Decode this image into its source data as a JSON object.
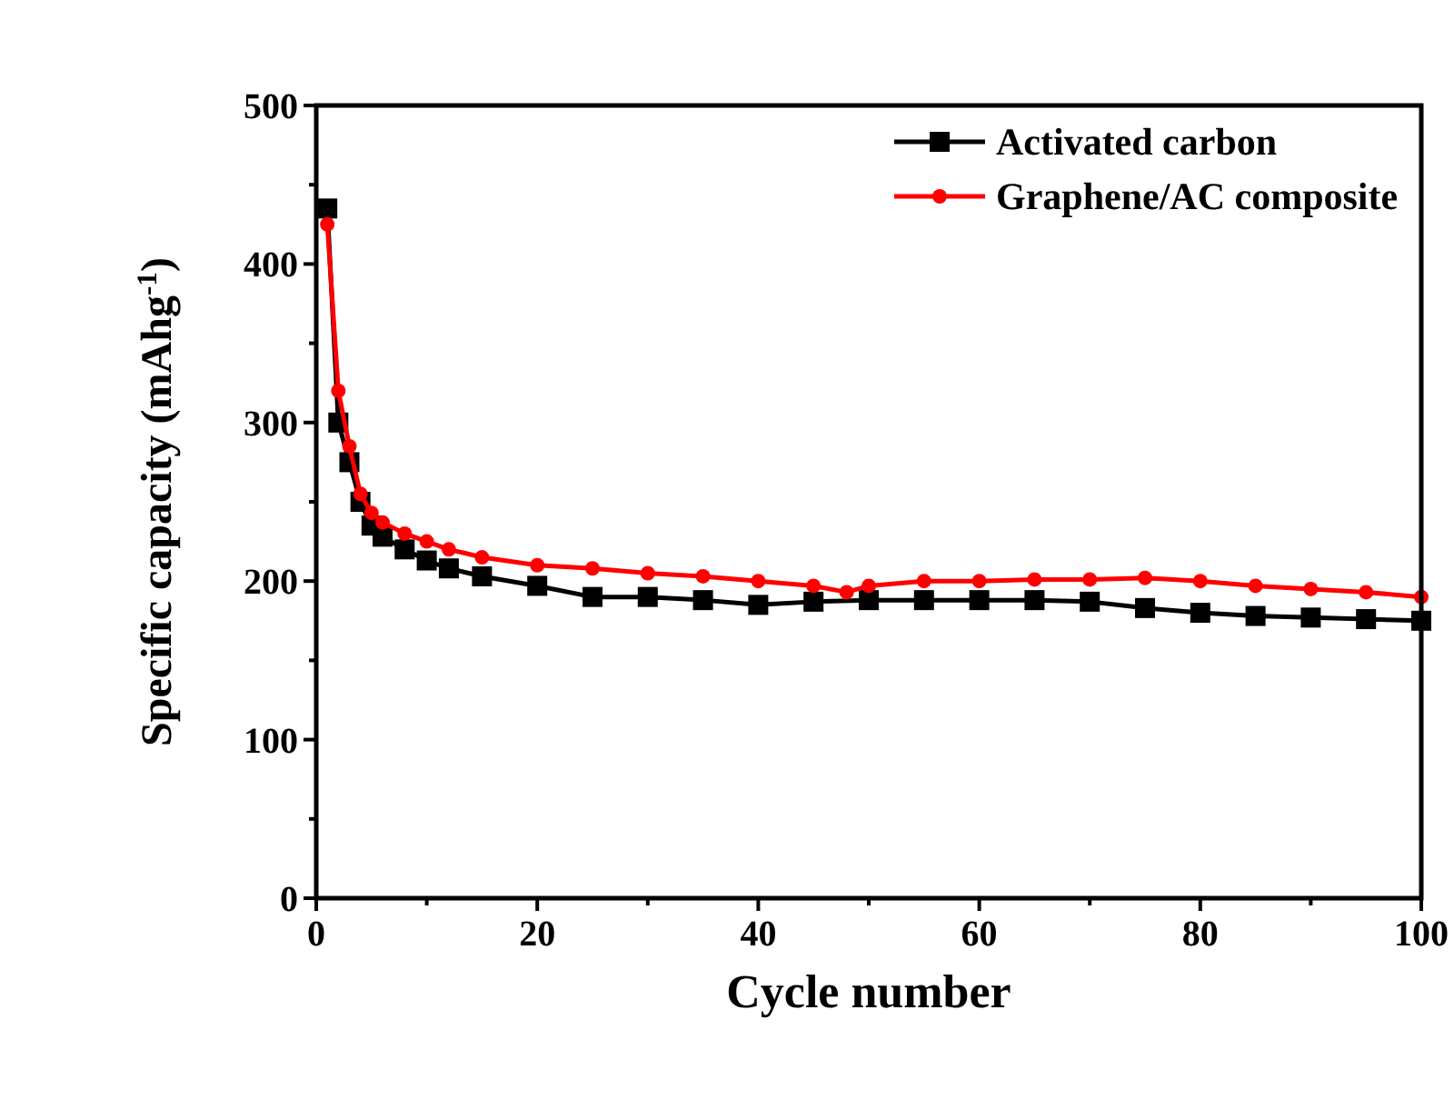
{
  "chart_data": {
    "type": "line",
    "xlabel": "Cycle number",
    "ylabel": "Specific capacity (mAhg$^{-1}$)",
    "xlim": [
      0,
      100
    ],
    "ylim": [
      0,
      500
    ],
    "xticks": [
      0,
      {
        "value": 10,
        "label": null
      },
      20,
      {
        "value": 30,
        "label": null
      },
      40,
      {
        "value": 50,
        "label": null
      },
      60,
      {
        "value": 70,
        "label": null
      },
      80,
      {
        "value": 90,
        "label": null
      },
      100
    ],
    "yticks": [
      0,
      {
        "value": 50,
        "label": null
      },
      100,
      {
        "value": 150,
        "label": null
      },
      200,
      {
        "value": 250,
        "label": null
      },
      300,
      {
        "value": 350,
        "label": null
      },
      400,
      {
        "value": 450,
        "label": null
      },
      500
    ],
    "legend": "top right",
    "grid": false,
    "line_style": "solid",
    "series": [
      {
        "name": "Activated carbon",
        "color": "#000000",
        "marker": "square",
        "x": [
          1,
          2,
          3,
          4,
          5,
          6,
          8,
          10,
          12,
          15,
          20,
          25,
          30,
          35,
          40,
          45,
          50,
          55,
          60,
          65,
          70,
          75,
          80,
          85,
          90,
          95,
          100
        ],
        "values": [
          435,
          300,
          275,
          250,
          235,
          228,
          220,
          213,
          208,
          203,
          197,
          190,
          190,
          188,
          185,
          187,
          188,
          188,
          188,
          188,
          187,
          183,
          180,
          178,
          177,
          176,
          175
        ]
      },
      {
        "name": "Graphene/AC composite",
        "color": "#ff0000",
        "marker": "circle",
        "x": [
          1,
          2,
          3,
          4,
          5,
          6,
          8,
          10,
          12,
          15,
          20,
          25,
          30,
          35,
          40,
          45,
          48,
          50,
          55,
          60,
          65,
          70,
          75,
          80,
          85,
          90,
          95,
          100
        ],
        "values": [
          425,
          320,
          285,
          255,
          243,
          237,
          230,
          225,
          220,
          215,
          210,
          208,
          205,
          203,
          200,
          197,
          193,
          197,
          200,
          200,
          201,
          201,
          202,
          200,
          197,
          195,
          193,
          190
        ]
      }
    ]
  }
}
